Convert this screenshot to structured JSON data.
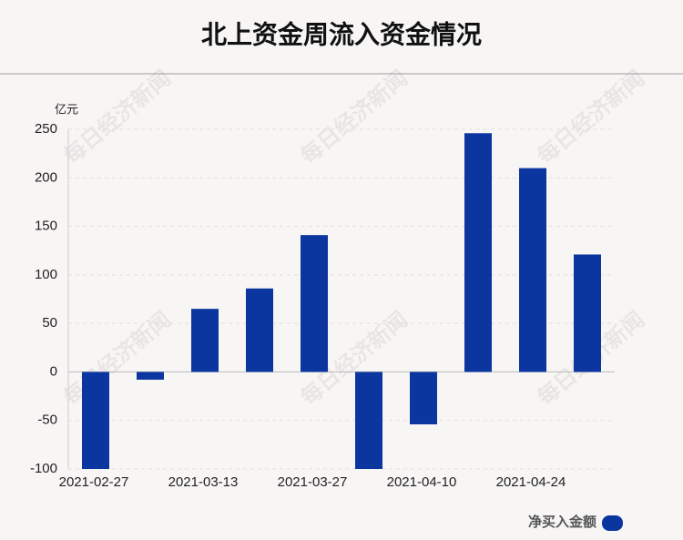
{
  "chart_data": {
    "type": "bar",
    "title": "北上资金周流入资金情况",
    "y_unit": "亿元",
    "categories": [
      "2021-02-27",
      null,
      "2021-03-13",
      null,
      "2021-03-27",
      null,
      "2021-04-10",
      null,
      "2021-04-24",
      null
    ],
    "series": [
      {
        "name": "净买入金额",
        "color": "#0b36a0",
        "values": [
          -100,
          -8,
          65,
          86,
          141,
          -100,
          -54,
          246,
          210,
          121
        ]
      }
    ],
    "ylim": [
      -100,
      250
    ],
    "yticks": [
      -100,
      -50,
      0,
      50,
      100,
      150,
      200,
      250
    ],
    "grid": true,
    "watermark": "每日经济新闻"
  }
}
